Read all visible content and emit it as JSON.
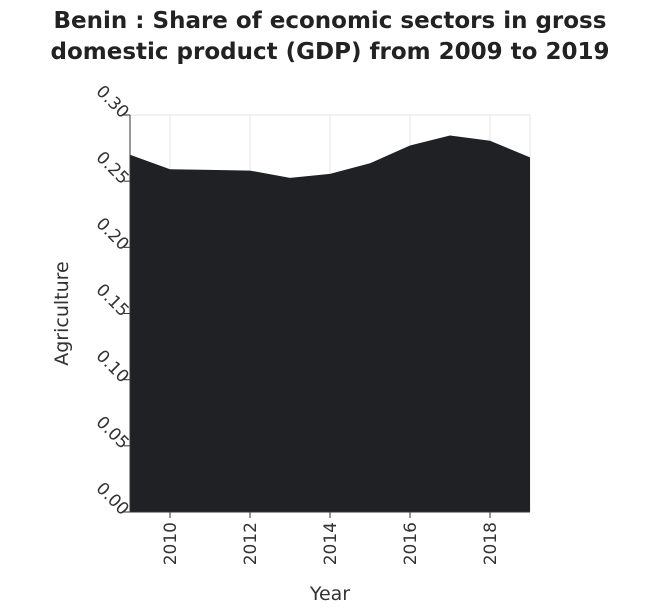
{
  "chart_data": {
    "type": "area",
    "title_line1": "Benin : Share of economic sectors in gross",
    "title_line2": "domestic product (GDP) from 2009 to 2019",
    "xlabel": "Year",
    "ylabel": "Agriculture",
    "x": [
      2009,
      2010,
      2011,
      2012,
      2013,
      2014,
      2015,
      2016,
      2017,
      2018,
      2019
    ],
    "values": [
      0.27,
      0.259,
      0.2585,
      0.258,
      0.2525,
      0.2555,
      0.2635,
      0.277,
      0.2845,
      0.2805,
      0.268
    ],
    "xlim": [
      2009,
      2019
    ],
    "ylim": [
      0,
      0.3
    ],
    "x_ticks": [
      2010,
      2012,
      2014,
      2016,
      2018
    ],
    "y_ticks": [
      "0.00",
      "0.05",
      "0.10",
      "0.15",
      "0.20",
      "0.25",
      "0.30"
    ],
    "grid": true,
    "colors": {
      "fill": "#1f2125",
      "grid": "#e6e6e6",
      "axis": "#333333"
    }
  }
}
